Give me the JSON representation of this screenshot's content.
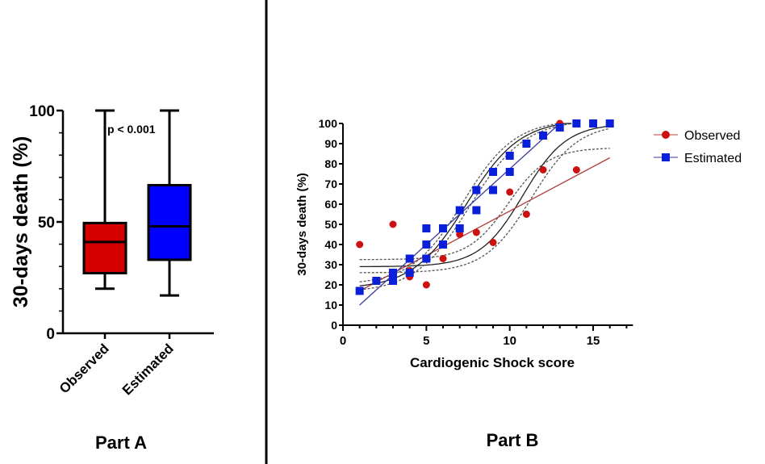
{
  "chart_data": [
    {
      "type": "box",
      "panel_label": "Part A",
      "ylabel": "30-days death (%)",
      "ylim": [
        0,
        100
      ],
      "yticks": [
        "0",
        "50",
        "100"
      ],
      "annotation": "p < 0.001",
      "boxes": [
        {
          "name": "Observed",
          "color": "#d40000",
          "min": 20,
          "q1": 27,
          "median": 41,
          "q3": 49.5,
          "max": 100
        },
        {
          "name": "Estimated",
          "color": "#0000ff",
          "min": 17,
          "q1": 33,
          "median": 48,
          "q3": 66.5,
          "max": 100
        }
      ]
    },
    {
      "type": "scatter",
      "panel_label": "Part B",
      "xlabel": "Cardiogenic Shock score",
      "ylabel": "30-days death (%)",
      "xlim": [
        0,
        17
      ],
      "ylim": [
        0,
        100
      ],
      "xticks": [
        "0",
        "5",
        "10",
        "15"
      ],
      "yticks": [
        "0",
        "10",
        "20",
        "30",
        "40",
        "50",
        "60",
        "70",
        "80",
        "90",
        "100"
      ],
      "legend": "right",
      "series": [
        {
          "name": "Observed",
          "color": "#cc1111",
          "marker": "circle",
          "x": [
            1,
            2,
            3,
            4,
            4,
            5,
            6,
            7,
            8,
            9,
            10,
            11,
            12,
            13,
            14,
            15,
            16
          ],
          "y": [
            40,
            22,
            50,
            27,
            24,
            20,
            33,
            45,
            46,
            41,
            66,
            55,
            77,
            100,
            77,
            100,
            100
          ],
          "linear_fit": {
            "color": "#b04040",
            "from": [
              1,
              17
            ],
            "to": [
              16,
              83
            ]
          },
          "sigmoid_fit": {
            "bottom": 29,
            "top": 100,
            "mid": 10.8,
            "scale": 1.3,
            "x_range": [
              1,
              16
            ]
          },
          "sigmoid_bands": [
            {
              "bottom": 32.5,
              "top": 88,
              "mid": 9.9,
              "scale": 1.2,
              "x_range": [
                1,
                16
              ]
            },
            {
              "bottom": 26,
              "top": 100,
              "mid": 11.3,
              "scale": 1.4,
              "x_range": [
                1,
                16
              ]
            }
          ]
        },
        {
          "name": "Estimated",
          "color": "#0a1fd8",
          "marker": "square",
          "x": [
            1,
            2,
            3,
            3,
            4,
            4,
            5,
            5,
            5,
            6,
            6,
            7,
            7,
            8,
            8,
            9,
            9,
            10,
            10,
            11,
            12,
            13,
            14,
            15,
            16
          ],
          "y": [
            17,
            22,
            26,
            22,
            33,
            26,
            48,
            40,
            33,
            48,
            40,
            57,
            48,
            67,
            57,
            76,
            67,
            84,
            76,
            90,
            94,
            98,
            100,
            100,
            100
          ],
          "linear_fit": {
            "color": "#3a3aa0",
            "from": [
              1,
              10
            ],
            "to": [
              13,
              100
            ]
          },
          "sigmoid_fit": {
            "bottom": 18,
            "top": 102,
            "mid": 7.4,
            "scale": 1.6,
            "x_range": [
              1,
              13.7
            ]
          },
          "sigmoid_bands": [
            {
              "bottom": 20,
              "top": 102,
              "mid": 7.2,
              "scale": 1.55,
              "x_range": [
                1,
                13.7
              ]
            },
            {
              "bottom": 16,
              "top": 102,
              "mid": 7.6,
              "scale": 1.65,
              "x_range": [
                1,
                13.7
              ]
            }
          ]
        }
      ]
    }
  ]
}
